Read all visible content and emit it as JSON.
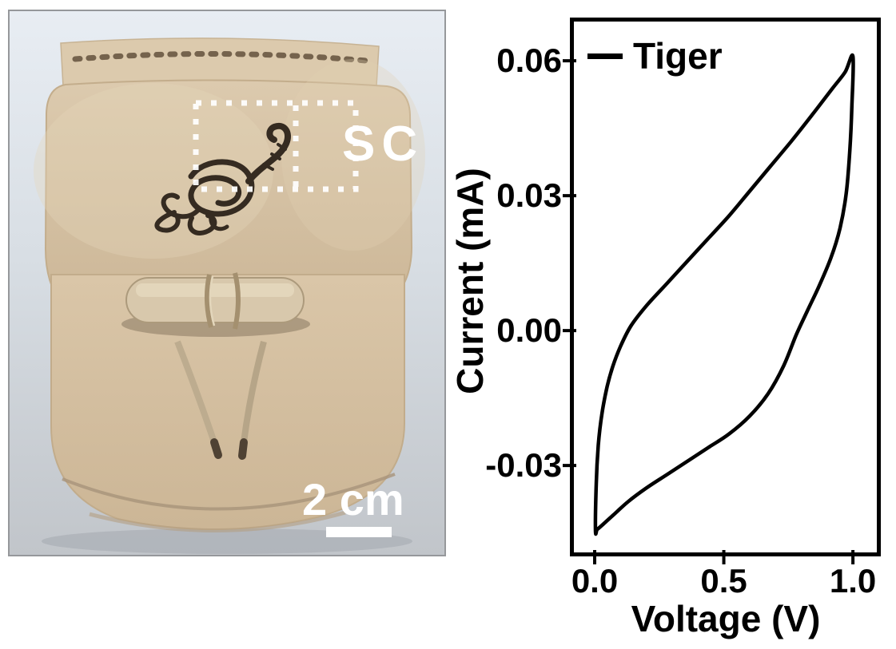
{
  "photo": {
    "description": "tan leather pouch with hand-drawn tiger ink sketch; dashed outline marks the supercapacitor region",
    "sc_label": "SC",
    "scale_bar": {
      "label": "2 cm"
    },
    "colors": {
      "leather": "#d6c1a3",
      "background": "#d9dfe5",
      "annotation": "#ffffff"
    }
  },
  "chart_data": {
    "type": "line",
    "title": "",
    "xlabel": "Voltage (V)",
    "ylabel": "Current (mA)",
    "legend": {
      "position": "top-left",
      "entries": [
        {
          "label": "Tiger",
          "color": "#000000"
        }
      ]
    },
    "xlim": [
      -0.096,
      1.108
    ],
    "ylim": [
      -0.0502,
      0.0696
    ],
    "x_ticks": {
      "values": [
        0.0,
        0.5,
        1.0
      ],
      "labels": [
        "0.0",
        "0.5",
        "1.0"
      ]
    },
    "y_ticks": {
      "values": [
        0.06,
        0.03,
        0.0,
        -0.03
      ],
      "labels": [
        "0.06",
        "0.03",
        "0.00",
        "-0.03"
      ]
    },
    "grid": false,
    "frame": true,
    "series": [
      {
        "name": "Tiger",
        "color": "#000000",
        "closed": true,
        "points": [
          [
            0.003,
            -0.0445
          ],
          [
            0.006,
            -0.034
          ],
          [
            0.014,
            -0.0255
          ],
          [
            0.028,
            -0.0185
          ],
          [
            0.048,
            -0.0125
          ],
          [
            0.07,
            -0.008
          ],
          [
            0.1,
            -0.0035
          ],
          [
            0.14,
            0.001
          ],
          [
            0.2,
            0.0055
          ],
          [
            0.28,
            0.0105
          ],
          [
            0.36,
            0.0155
          ],
          [
            0.44,
            0.0205
          ],
          [
            0.52,
            0.0255
          ],
          [
            0.6,
            0.031
          ],
          [
            0.68,
            0.0365
          ],
          [
            0.76,
            0.042
          ],
          [
            0.84,
            0.0478
          ],
          [
            0.92,
            0.0538
          ],
          [
            0.97,
            0.0575
          ],
          [
            1.0,
            0.061
          ],
          [
            0.996,
            0.05
          ],
          [
            0.988,
            0.04
          ],
          [
            0.974,
            0.0305
          ],
          [
            0.95,
            0.0228
          ],
          [
            0.915,
            0.0162
          ],
          [
            0.868,
            0.0098
          ],
          [
            0.822,
            0.0042
          ],
          [
            0.78,
            -0.001
          ],
          [
            0.732,
            -0.0078
          ],
          [
            0.672,
            -0.014
          ],
          [
            0.6,
            -0.019
          ],
          [
            0.52,
            -0.023
          ],
          [
            0.44,
            -0.026
          ],
          [
            0.36,
            -0.029
          ],
          [
            0.28,
            -0.032
          ],
          [
            0.2,
            -0.035
          ],
          [
            0.13,
            -0.038
          ],
          [
            0.072,
            -0.041
          ],
          [
            0.03,
            -0.0432
          ],
          [
            0.01,
            -0.0442
          ]
        ]
      }
    ]
  }
}
